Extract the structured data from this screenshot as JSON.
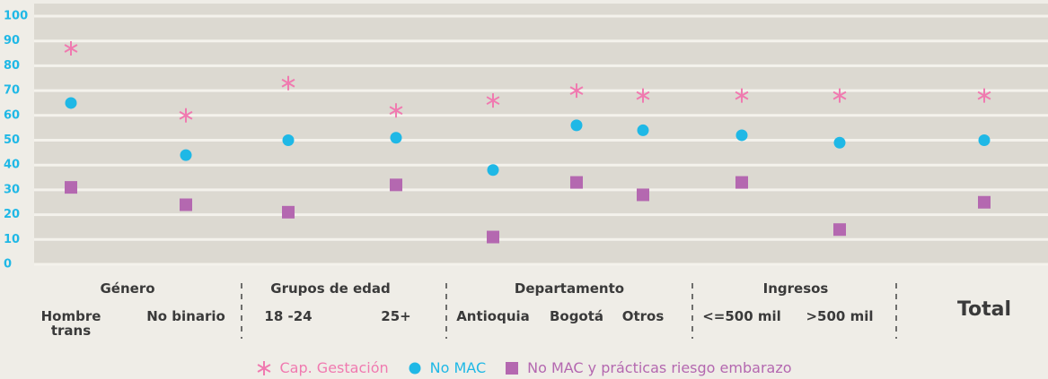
{
  "chart_data": {
    "type": "dotplot",
    "groups": [
      "Género",
      "Grupos de edad",
      "Departamento",
      "Ingresos"
    ],
    "categories": [
      "Hombre trans",
      "No binario",
      "18 -24",
      "25+",
      "Antioquia",
      "Bogotá",
      "Otros",
      "<=500 mil",
      ">500 mil",
      "Total"
    ],
    "series": [
      {
        "name": "Cap. Gestación",
        "color": "#f07ab0",
        "marker": "asterisk",
        "values": [
          87,
          60,
          73,
          62,
          66,
          70,
          68,
          68,
          68,
          68
        ]
      },
      {
        "name": "No MAC",
        "color": "#1fb8e6",
        "marker": "circle",
        "values": [
          65,
          44,
          50,
          51,
          38,
          56,
          54,
          52,
          49,
          50
        ]
      },
      {
        "name": "No MAC y prácticas riesgo embarazo",
        "color": "#b468b0",
        "marker": "square",
        "values": [
          31,
          24,
          21,
          32,
          11,
          33,
          28,
          33,
          14,
          25
        ]
      }
    ],
    "ylim": [
      0,
      100
    ],
    "yticks": [
      0,
      10,
      20,
      30,
      40,
      50,
      60,
      70,
      80,
      90,
      100
    ],
    "grid": true
  }
}
